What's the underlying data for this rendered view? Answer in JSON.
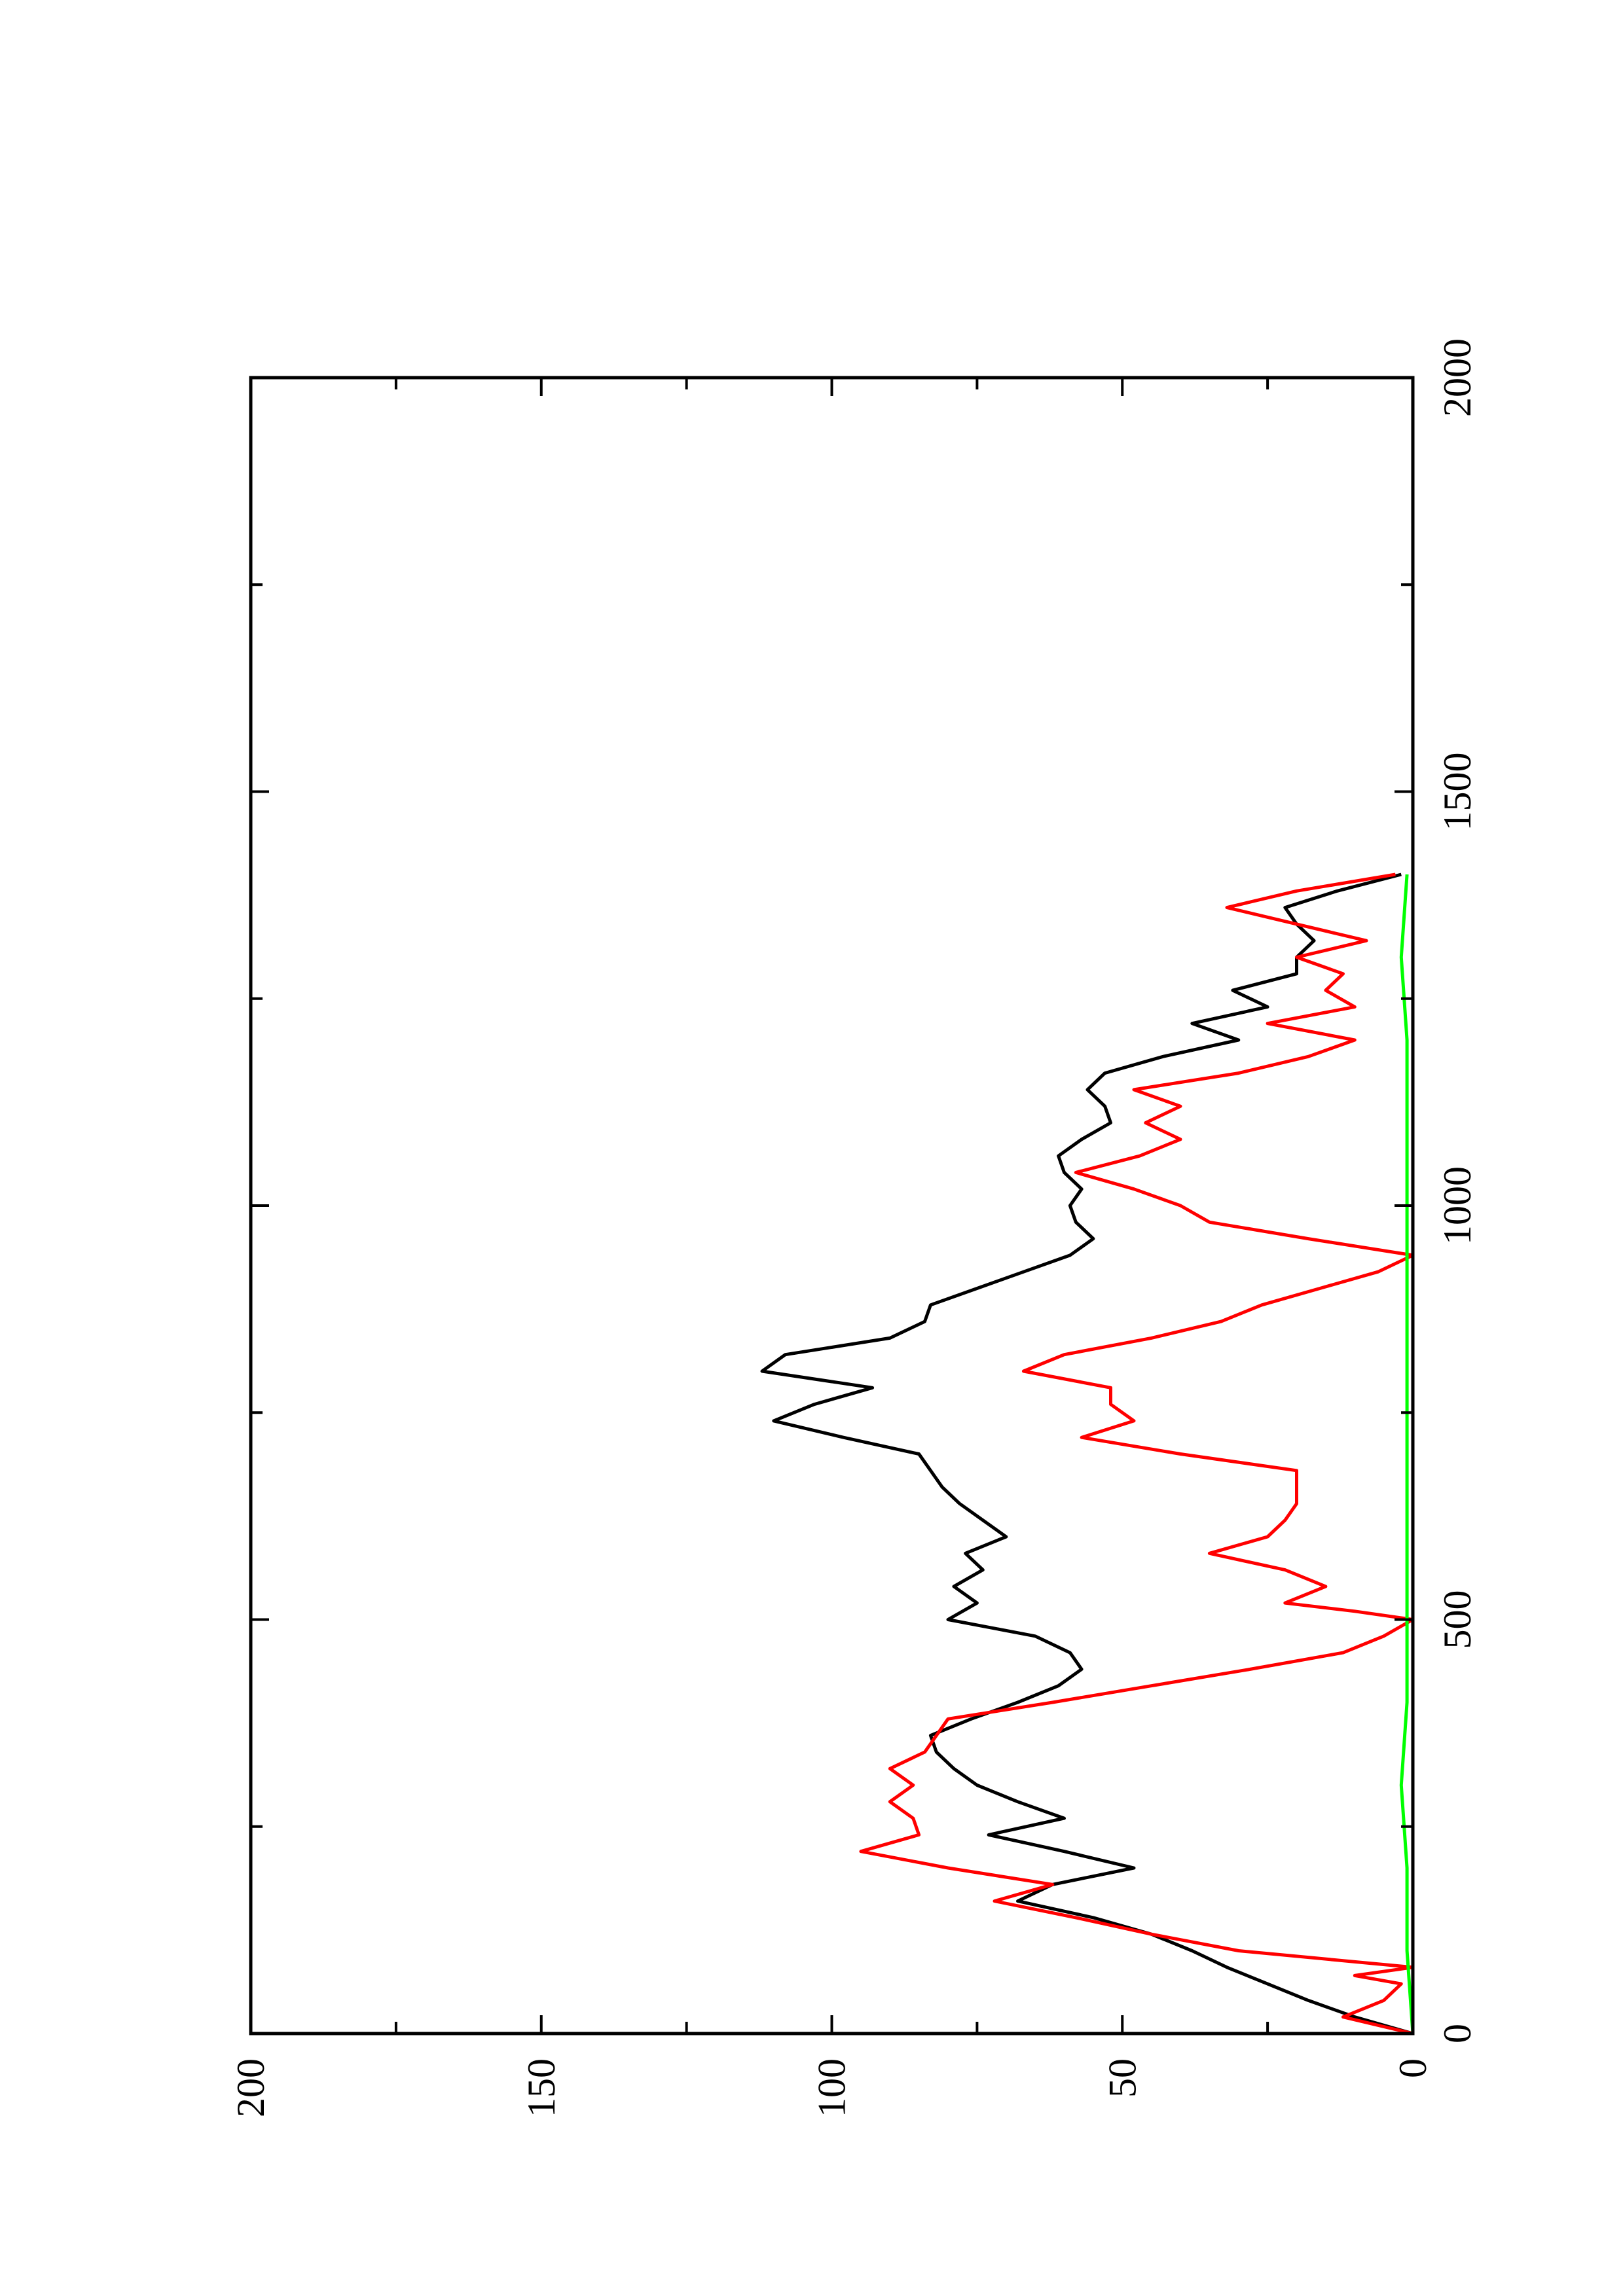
{
  "chart_data": {
    "type": "line",
    "title": "",
    "xlabel": "",
    "ylabel": "",
    "orientation": "rotated 90° counter-clockwise (x axis runs bottom-to-top, y axis runs right-to-left)",
    "xlim": [
      0,
      2000
    ],
    "ylim": [
      0,
      200
    ],
    "x_ticks": [
      "0",
      "500",
      "1000",
      "1500",
      "2000"
    ],
    "y_ticks": [
      "0",
      "50",
      "100",
      "150",
      "200"
    ],
    "x_tick_values": [
      0,
      500,
      1000,
      1500,
      2000
    ],
    "y_tick_values": [
      0,
      50,
      100,
      150,
      200
    ],
    "grid": false,
    "legend": "none",
    "series": [
      {
        "color": "#000000",
        "x": [
          0,
          20,
          40,
          60,
          80,
          100,
          120,
          140,
          160,
          180,
          200,
          220,
          240,
          260,
          280,
          300,
          320,
          340,
          360,
          380,
          400,
          420,
          440,
          460,
          480,
          500,
          520,
          540,
          560,
          580,
          600,
          620,
          640,
          660,
          680,
          700,
          720,
          740,
          760,
          780,
          800,
          820,
          840,
          860,
          880,
          900,
          920,
          940,
          960,
          980,
          1000,
          1020,
          1040,
          1060,
          1080,
          1100,
          1120,
          1140,
          1160,
          1180,
          1200,
          1220,
          1240,
          1260,
          1280,
          1300,
          1320,
          1340,
          1360,
          1380,
          1400
        ],
        "y": [
          0,
          10,
          18,
          25,
          32,
          38,
          45,
          55,
          68,
          62,
          48,
          60,
          73,
          60,
          68,
          75,
          79,
          82,
          83,
          76,
          68,
          61,
          57,
          59,
          65,
          80,
          75,
          79,
          74,
          77,
          70,
          74,
          78,
          81,
          83,
          85,
          98,
          110,
          103,
          93,
          112,
          108,
          90,
          84,
          83,
          75,
          67,
          59,
          55,
          58,
          59,
          57,
          60,
          61,
          57,
          52,
          53,
          56,
          53,
          43,
          30,
          38,
          25,
          31,
          20,
          20,
          17,
          20,
          22,
          13,
          2
        ]
      },
      {
        "color": "#ff0000",
        "x": [
          0,
          20,
          40,
          60,
          70,
          80,
          100,
          120,
          140,
          160,
          180,
          200,
          220,
          240,
          260,
          280,
          300,
          320,
          340,
          360,
          380,
          400,
          420,
          440,
          460,
          480,
          500,
          510,
          520,
          540,
          560,
          580,
          600,
          620,
          640,
          660,
          680,
          700,
          720,
          740,
          760,
          780,
          800,
          820,
          840,
          860,
          880,
          900,
          920,
          940,
          960,
          980,
          1000,
          1020,
          1040,
          1060,
          1080,
          1100,
          1120,
          1140,
          1160,
          1180,
          1200,
          1220,
          1240,
          1260,
          1280,
          1300,
          1320,
          1340,
          1360,
          1380,
          1400
        ],
        "y": [
          0,
          12,
          5,
          2,
          10,
          0,
          30,
          45,
          58,
          72,
          62,
          80,
          95,
          85,
          86,
          90,
          86,
          90,
          84,
          82,
          80,
          62,
          45,
          28,
          12,
          5,
          0,
          10,
          22,
          15,
          22,
          35,
          25,
          22,
          20,
          20,
          20,
          40,
          57,
          48,
          52,
          52,
          67,
          60,
          45,
          33,
          26,
          16,
          6,
          0,
          18,
          35,
          40,
          48,
          58,
          47,
          40,
          46,
          40,
          48,
          30,
          18,
          10,
          25,
          10,
          15,
          12,
          20,
          8,
          20,
          32,
          20,
          3
        ]
      },
      {
        "color": "#00ff00",
        "x": [
          0,
          100,
          200,
          300,
          400,
          500,
          600,
          700,
          800,
          900,
          1000,
          1100,
          1200,
          1300,
          1400
        ],
        "y": [
          0,
          1,
          1,
          2,
          1,
          1,
          1,
          1,
          1,
          1,
          1,
          1,
          1,
          2,
          1
        ]
      }
    ]
  }
}
